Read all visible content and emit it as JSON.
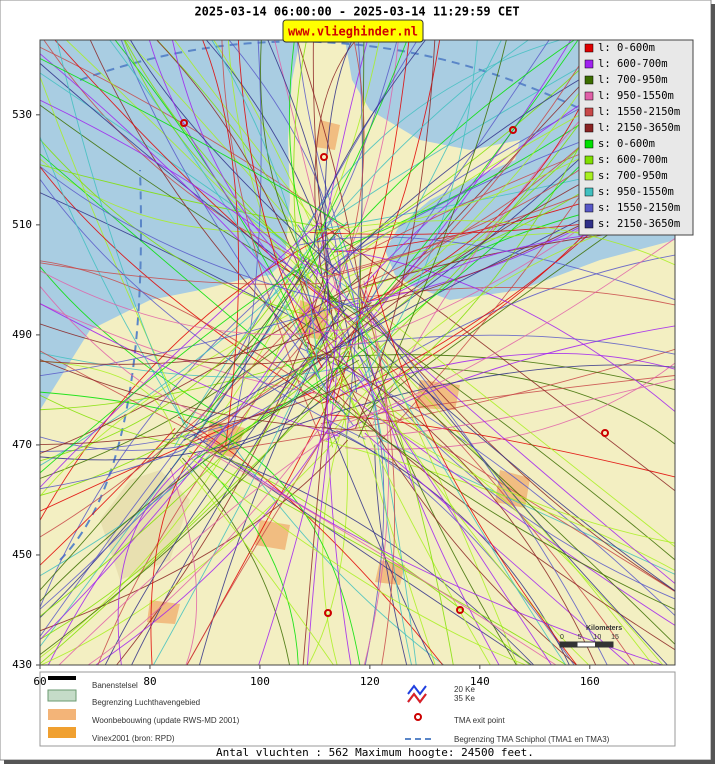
{
  "header": {
    "title": "2025-03-14 06:00:00 - 2025-03-14 11:29:59 CET",
    "site": "www.vlieghinder.nl"
  },
  "map": {
    "xlim": [
      60,
      175.5
    ],
    "ylim": [
      430,
      543.6
    ],
    "xticks": [
      60,
      80,
      100,
      120,
      140,
      160
    ],
    "yticks": [
      430,
      450,
      470,
      490,
      510,
      530
    ],
    "legend": [
      {
        "label": "l: 0-600m",
        "color": "#e00000"
      },
      {
        "label": "l: 600-700m",
        "color": "#a020f0"
      },
      {
        "label": "l: 700-950m",
        "color": "#3c6e00"
      },
      {
        "label": "l: 950-1550m",
        "color": "#e060a8"
      },
      {
        "label": "l: 1550-2150m",
        "color": "#c84848"
      },
      {
        "label": "l: 2150-3650m",
        "color": "#8b2323"
      },
      {
        "label": "s: 0-600m",
        "color": "#00e000"
      },
      {
        "label": "s: 600-700m",
        "color": "#80e000"
      },
      {
        "label": "s: 700-950m",
        "color": "#a8f020"
      },
      {
        "label": "s: 950-1550m",
        "color": "#40c0c0"
      },
      {
        "label": "s: 1550-2150m",
        "color": "#5858c8"
      },
      {
        "label": "s: 2150-3650m",
        "color": "#303088"
      }
    ],
    "scale_bar": {
      "title": "Kilometers",
      "ticks": [
        0,
        5,
        10,
        15
      ]
    }
  },
  "footer_legend": {
    "runways": "Banenstelsel",
    "airport_boundary": "Begrenzing Luchthavengebied",
    "housing": "Woonbebouwing (update RWS-MD 2001)",
    "vinex": "Vinex2001 (bron: RPD)",
    "ke20": "20 Ke",
    "ke35": "35 Ke",
    "exit_point": "TMA exit point",
    "tma_boundary": "Begrenzing TMA Schiphol  (TMA1 en TMA3)"
  },
  "footer": "Antal vluchten : 562 Maximum hoogte: 24500 feet."
}
